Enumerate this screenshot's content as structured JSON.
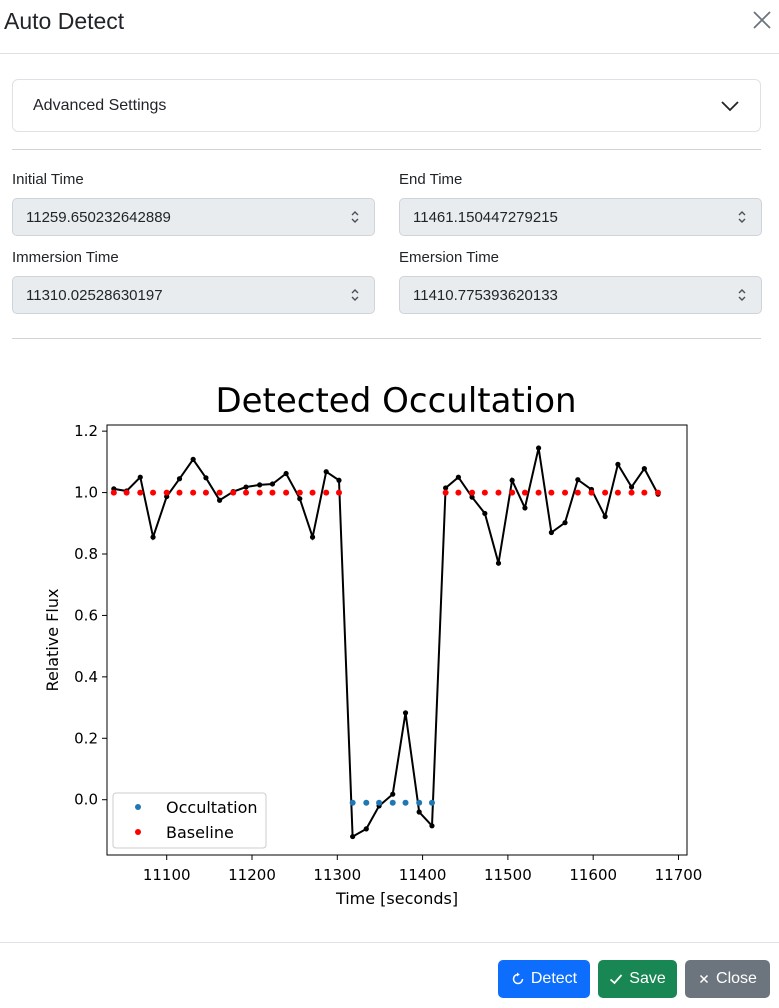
{
  "dialog": {
    "title": "Auto Detect"
  },
  "advanced": {
    "label": "Advanced Settings"
  },
  "fields": {
    "initial_time": {
      "label": "Initial Time",
      "value": "11259.650232642889"
    },
    "end_time": {
      "label": "End Time",
      "value": "11461.150447279215"
    },
    "immersion_time": {
      "label": "Immersion Time",
      "value": "11310.02528630197"
    },
    "emersion_time": {
      "label": "Emersion Time",
      "value": "11410.775393620133"
    }
  },
  "chart_data": {
    "type": "line",
    "title": "Detected Occultation",
    "xlabel": "Time [seconds]",
    "ylabel": "Relative Flux",
    "xlim": [
      11030,
      11710
    ],
    "ylim": [
      -0.18,
      1.22
    ],
    "xticks": [
      11100,
      11200,
      11300,
      11400,
      11500,
      11600,
      11700
    ],
    "yticks": [
      0.0,
      0.2,
      0.4,
      0.6,
      0.8,
      1.0,
      1.2
    ],
    "ytick_labels": [
      "0.0",
      "0.2",
      "0.4",
      "0.6",
      "0.8",
      "1.0",
      "1.2"
    ],
    "legend_position": "lower-left",
    "grid": false,
    "series": [
      {
        "kind": "line",
        "color": "#000000",
        "points": [
          [
            11038,
            1.012
          ],
          [
            11053,
            1.005
          ],
          [
            11069,
            1.05
          ],
          [
            11084,
            0.855
          ],
          [
            11100,
            0.987
          ],
          [
            11115,
            1.045
          ],
          [
            11131,
            1.108
          ],
          [
            11146,
            1.048
          ],
          [
            11162,
            0.975
          ],
          [
            11178,
            1.003
          ],
          [
            11193,
            1.018
          ],
          [
            11209,
            1.025
          ],
          [
            11224,
            1.028
          ],
          [
            11240,
            1.062
          ],
          [
            11256,
            0.98
          ],
          [
            11271,
            0.855
          ],
          [
            11287,
            1.068
          ],
          [
            11302,
            1.04
          ],
          [
            11318,
            -0.12
          ],
          [
            11334,
            -0.095
          ],
          [
            11349,
            -0.02
          ],
          [
            11365,
            0.018
          ],
          [
            11380,
            0.283
          ],
          [
            11396,
            -0.04
          ],
          [
            11411,
            -0.085
          ],
          [
            11427,
            1.015
          ],
          [
            11442,
            1.05
          ],
          [
            11458,
            0.985
          ],
          [
            11473,
            0.932
          ],
          [
            11489,
            0.77
          ],
          [
            11505,
            1.04
          ],
          [
            11520,
            0.95
          ],
          [
            11536,
            1.145
          ],
          [
            11551,
            0.87
          ],
          [
            11567,
            0.902
          ],
          [
            11582,
            1.042
          ],
          [
            11598,
            1.01
          ],
          [
            11614,
            0.922
          ],
          [
            11629,
            1.092
          ],
          [
            11645,
            1.018
          ],
          [
            11660,
            1.078
          ],
          [
            11676,
            0.995
          ]
        ]
      },
      {
        "name": "Occultation",
        "kind": "scatter",
        "color": "#1f77b4",
        "points": [
          [
            11318,
            -0.01
          ],
          [
            11334,
            -0.01
          ],
          [
            11349,
            -0.01
          ],
          [
            11365,
            -0.01
          ],
          [
            11380,
            -0.01
          ],
          [
            11396,
            -0.01
          ],
          [
            11411,
            -0.01
          ]
        ]
      },
      {
        "name": "Baseline",
        "kind": "scatter",
        "color": "#ff0000",
        "points": [
          [
            11038,
            1.0
          ],
          [
            11053,
            1.0
          ],
          [
            11069,
            1.0
          ],
          [
            11084,
            1.0
          ],
          [
            11100,
            1.0
          ],
          [
            11115,
            1.0
          ],
          [
            11131,
            1.0
          ],
          [
            11146,
            1.0
          ],
          [
            11162,
            1.0
          ],
          [
            11178,
            1.0
          ],
          [
            11193,
            1.0
          ],
          [
            11209,
            1.0
          ],
          [
            11224,
            1.0
          ],
          [
            11240,
            1.0
          ],
          [
            11256,
            1.0
          ],
          [
            11271,
            1.0
          ],
          [
            11287,
            1.0
          ],
          [
            11302,
            1.0
          ],
          [
            11427,
            1.0
          ],
          [
            11442,
            1.0
          ],
          [
            11458,
            1.0
          ],
          [
            11473,
            1.0
          ],
          [
            11489,
            1.0
          ],
          [
            11505,
            1.0
          ],
          [
            11520,
            1.0
          ],
          [
            11536,
            1.0
          ],
          [
            11551,
            1.0
          ],
          [
            11567,
            1.0
          ],
          [
            11582,
            1.0
          ],
          [
            11598,
            1.0
          ],
          [
            11614,
            1.0
          ],
          [
            11629,
            1.0
          ],
          [
            11645,
            1.0
          ],
          [
            11660,
            1.0
          ],
          [
            11676,
            1.0
          ]
        ]
      }
    ]
  },
  "footer": {
    "detect_label": "Detect",
    "save_label": "Save",
    "close_label": "Close"
  },
  "icons": {
    "close": "close-icon",
    "chevron": "chevron-down-icon",
    "spinner": "spinner-arrows-icon",
    "detect": "refresh-icon",
    "save": "check-icon",
    "close_button": "x-icon"
  },
  "colors": {
    "detect": "#0d6efd",
    "save": "#198754",
    "close": "#6c757d"
  }
}
